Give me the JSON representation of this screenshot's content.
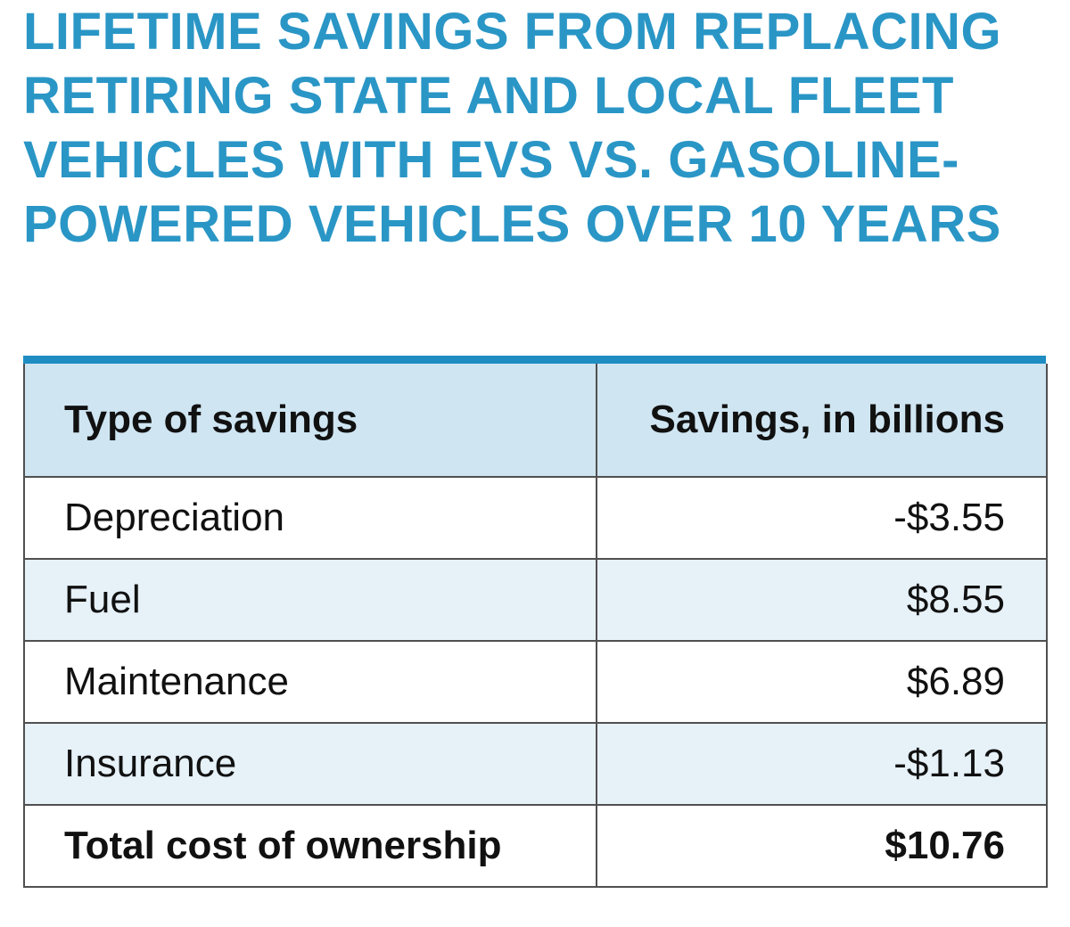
{
  "title_lines": [
    "LIFETIME SAVINGS FROM REPLACING",
    "RETIRING STATE AND LOCAL FLEET",
    "VEHICLES WITH EVS VS. GASOLINE-",
    "POWERED VEHICLES OVER 10 YEARS"
  ],
  "table": {
    "headers": [
      "Type of savings",
      "Savings, in billions"
    ],
    "rows": [
      {
        "type": "Depreciation",
        "value": "-$3.55"
      },
      {
        "type": "Fuel",
        "value": "$8.55"
      },
      {
        "type": "Maintenance",
        "value": "$6.89"
      },
      {
        "type": "Insurance",
        "value": "-$1.13"
      }
    ],
    "total": {
      "type": "Total cost of ownership",
      "value": "$10.76"
    }
  },
  "colors": {
    "title": "#2a96c6",
    "accent_bar": "#1f8dc2",
    "header_bg": "#cfe5f2",
    "row_shade": "#e6f1f8"
  }
}
